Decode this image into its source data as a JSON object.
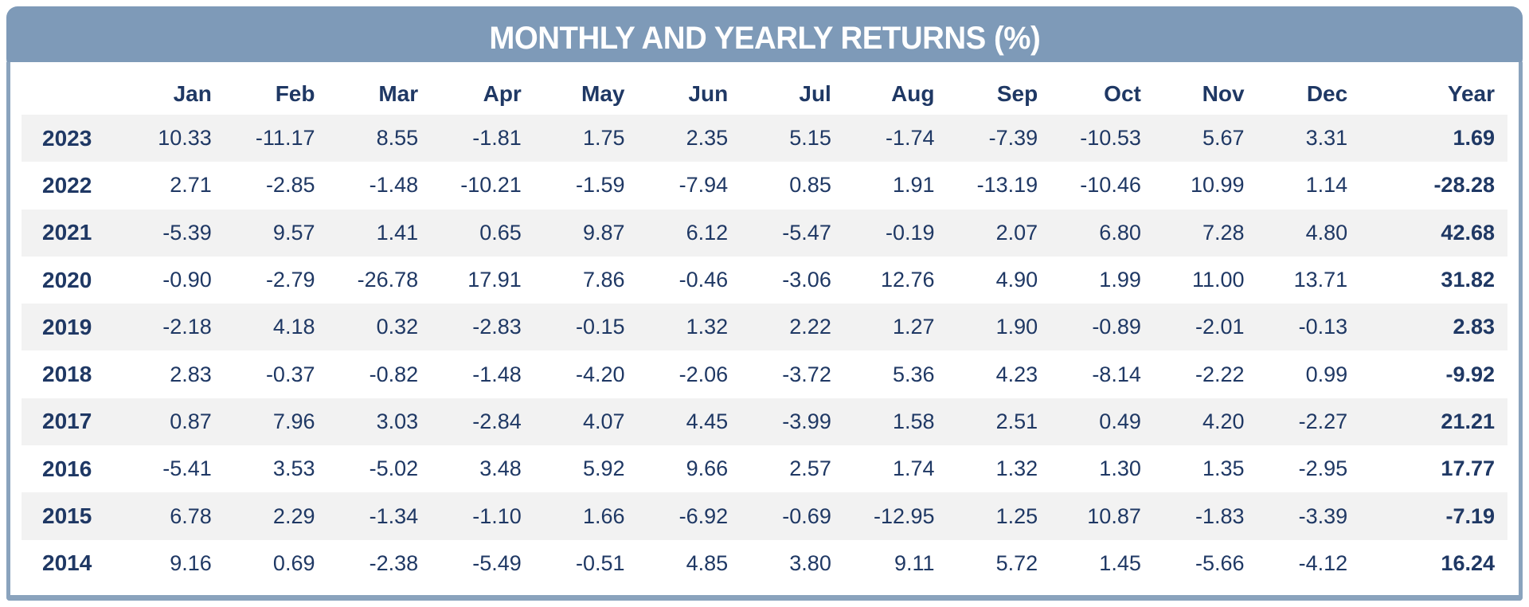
{
  "title": "MONTHLY AND YEARLY RETURNS (%)",
  "colors": {
    "header_bg": "#7e9ab8",
    "text_navy": "#1f3864",
    "row_stripe": "#f2f2f2",
    "card_border": "#8aa3bd"
  },
  "chart_data": {
    "type": "table",
    "title": "MONTHLY AND YEARLY RETURNS (%)",
    "columns": [
      "Jan",
      "Feb",
      "Mar",
      "Apr",
      "May",
      "Jun",
      "Jul",
      "Aug",
      "Sep",
      "Oct",
      "Nov",
      "Dec",
      "Year"
    ],
    "rows": [
      {
        "year": "2023",
        "values": [
          "10.33",
          "-11.17",
          "8.55",
          "-1.81",
          "1.75",
          "2.35",
          "5.15",
          "-1.74",
          "-7.39",
          "-10.53",
          "5.67",
          "3.31"
        ],
        "total": "1.69"
      },
      {
        "year": "2022",
        "values": [
          "2.71",
          "-2.85",
          "-1.48",
          "-10.21",
          "-1.59",
          "-7.94",
          "0.85",
          "1.91",
          "-13.19",
          "-10.46",
          "10.99",
          "1.14"
        ],
        "total": "-28.28"
      },
      {
        "year": "2021",
        "values": [
          "-5.39",
          "9.57",
          "1.41",
          "0.65",
          "9.87",
          "6.12",
          "-5.47",
          "-0.19",
          "2.07",
          "6.80",
          "7.28",
          "4.80"
        ],
        "total": "42.68"
      },
      {
        "year": "2020",
        "values": [
          "-0.90",
          "-2.79",
          "-26.78",
          "17.91",
          "7.86",
          "-0.46",
          "-3.06",
          "12.76",
          "4.90",
          "1.99",
          "11.00",
          "13.71"
        ],
        "total": "31.82"
      },
      {
        "year": "2019",
        "values": [
          "-2.18",
          "4.18",
          "0.32",
          "-2.83",
          "-0.15",
          "1.32",
          "2.22",
          "1.27",
          "1.90",
          "-0.89",
          "-2.01",
          "-0.13"
        ],
        "total": "2.83"
      },
      {
        "year": "2018",
        "values": [
          "2.83",
          "-0.37",
          "-0.82",
          "-1.48",
          "-4.20",
          "-2.06",
          "-3.72",
          "5.36",
          "4.23",
          "-8.14",
          "-2.22",
          "0.99"
        ],
        "total": "-9.92"
      },
      {
        "year": "2017",
        "values": [
          "0.87",
          "7.96",
          "3.03",
          "-2.84",
          "4.07",
          "4.45",
          "-3.99",
          "1.58",
          "2.51",
          "0.49",
          "4.20",
          "-2.27"
        ],
        "total": "21.21"
      },
      {
        "year": "2016",
        "values": [
          "-5.41",
          "3.53",
          "-5.02",
          "3.48",
          "5.92",
          "9.66",
          "2.57",
          "1.74",
          "1.32",
          "1.30",
          "1.35",
          "-2.95"
        ],
        "total": "17.77"
      },
      {
        "year": "2015",
        "values": [
          "6.78",
          "2.29",
          "-1.34",
          "-1.10",
          "1.66",
          "-6.92",
          "-0.69",
          "-12.95",
          "1.25",
          "10.87",
          "-1.83",
          "-3.39"
        ],
        "total": "-7.19"
      },
      {
        "year": "2014",
        "values": [
          "9.16",
          "0.69",
          "-2.38",
          "-5.49",
          "-0.51",
          "4.85",
          "3.80",
          "9.11",
          "5.72",
          "1.45",
          "-5.66",
          "-4.12"
        ],
        "total": "16.24"
      }
    ]
  }
}
